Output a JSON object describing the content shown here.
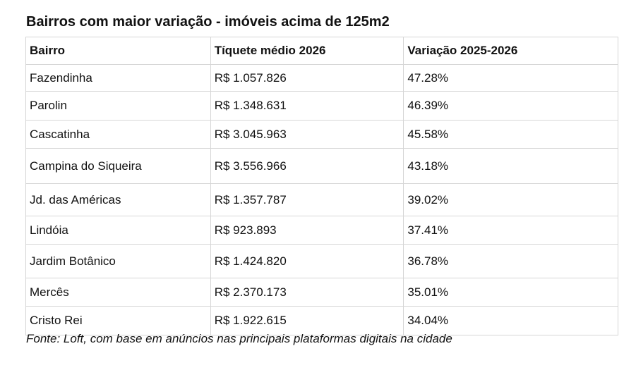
{
  "title": "Bairros com maior variação - imóveis acima de 125m2",
  "table": {
    "header": [
      "Bairro",
      "Tíquete médio 2026",
      "Variação 2025-2026"
    ],
    "rows": [
      [
        "Fazendinha",
        "R$ 1.057.826",
        "47.28%"
      ],
      [
        "Parolin",
        "R$ 1.348.631",
        "46.39%"
      ],
      [
        "Cascatinha",
        "R$ 3.045.963",
        "45.58%"
      ],
      [
        "Campina do Siqueira",
        "R$ 3.556.966",
        "43.18%"
      ],
      [
        "Jd. das Américas",
        "R$ 1.357.787",
        "39.02%"
      ],
      [
        "Lindóia",
        "R$ 923.893",
        "37.41%"
      ],
      [
        "Jardim Botânico",
        "R$ 1.424.820",
        "36.78%"
      ],
      [
        "Mercês",
        "R$ 2.370.173",
        "35.01%"
      ],
      [
        "Cristo Rei",
        "R$ 1.922.615",
        "34.04%"
      ]
    ]
  },
  "footer": "Fonte: Loft, com base em anúncios nas principais plataformas digitais na cidade"
}
